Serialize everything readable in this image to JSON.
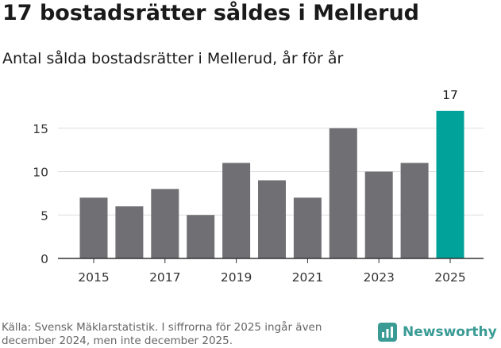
{
  "header": {
    "title": "17 bostadsrätter såldes i Mellerud",
    "subtitle": "Antal sålda bostadsrätter i Mellerud, år för år"
  },
  "footer": {
    "source": "Källa: Svensk Mäklarstatistik. I siffrorna för 2025 ingår även december 2024, men inte december 2025.",
    "brand": "Newsworthy"
  },
  "colors": {
    "bar": "#706f74",
    "highlight": "#00a29a",
    "grid": "#dddddd",
    "axis": "#333333",
    "brand": "#3a9b95"
  },
  "chart_data": {
    "type": "bar",
    "title": "Antal sålda bostadsrätter i Mellerud, år för år",
    "categories": [
      "2015",
      "2016",
      "2017",
      "2018",
      "2019",
      "2020",
      "2021",
      "2022",
      "2023",
      "2024",
      "2025"
    ],
    "values": [
      7,
      6,
      8,
      5,
      11,
      9,
      7,
      15,
      10,
      11,
      17
    ],
    "highlight_index": 10,
    "highlight_label": "17",
    "x_tick_labels": [
      "2015",
      "2017",
      "2019",
      "2021",
      "2023",
      "2025"
    ],
    "y_ticks": [
      0,
      5,
      10,
      15
    ],
    "ylim": [
      0,
      17.5
    ],
    "xlabel": "",
    "ylabel": "",
    "grid": true
  }
}
